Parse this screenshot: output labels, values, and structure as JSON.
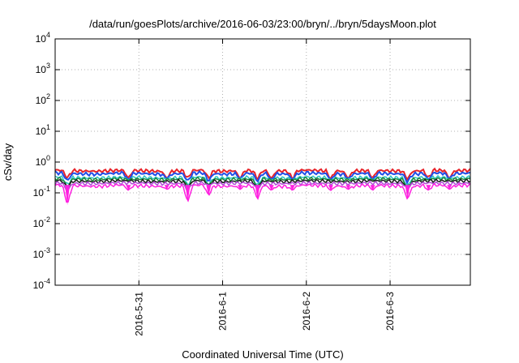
{
  "chart_data": {
    "type": "area",
    "title": "/data/run/goesPlots/archive/2016-06-03/23:00/bryn/../bryn/5daysMoon.plot",
    "xlabel": "Coordinated Universal Time (UTC)",
    "ylabel": "cSv/day",
    "yscale": "log",
    "ylim": [
      0.0001,
      10000
    ],
    "y_ticks": [
      {
        "value": 0.0001,
        "mantissa": "10",
        "exp": "-4"
      },
      {
        "value": 0.001,
        "mantissa": "10",
        "exp": "-3"
      },
      {
        "value": 0.01,
        "mantissa": "10",
        "exp": "-2"
      },
      {
        "value": 0.1,
        "mantissa": "10",
        "exp": "-1"
      },
      {
        "value": 1,
        "mantissa": "10",
        "exp": "0"
      },
      {
        "value": 10,
        "mantissa": "10",
        "exp": "1"
      },
      {
        "value": 100,
        "mantissa": "10",
        "exp": "2"
      },
      {
        "value": 1000,
        "mantissa": "10",
        "exp": "3"
      },
      {
        "value": 10000,
        "mantissa": "10",
        "exp": "4"
      }
    ],
    "xlim": [
      "2016-05-30T00:00",
      "2016-06-03T23:00"
    ],
    "x_ticks": [
      "2016-5-31",
      "2016-6-1",
      "2016-6-2",
      "2016-6-3"
    ],
    "x_tick_dates": [
      "2016-05-31",
      "2016-06-01",
      "2016-06-02",
      "2016-06-03"
    ],
    "grid": true,
    "legend": "none",
    "x": [
      "2016-05-30T00:00",
      "2016-05-30T06:00",
      "2016-05-30T12:00",
      "2016-05-30T18:00",
      "2016-05-31T00:00",
      "2016-05-31T06:00",
      "2016-05-31T12:00",
      "2016-05-31T18:00",
      "2016-06-01T00:00",
      "2016-06-01T06:00",
      "2016-06-01T12:00",
      "2016-06-01T18:00",
      "2016-06-02T00:00",
      "2016-06-02T06:00",
      "2016-06-02T12:00",
      "2016-06-02T18:00",
      "2016-06-03T00:00",
      "2016-06-03T06:00",
      "2016-06-03T12:00",
      "2016-06-03T18:00",
      "2016-06-03T23:00"
    ],
    "series": [
      {
        "color": "#e8232a",
        "values": [
          0.55,
          0.52,
          0.5,
          0.54,
          0.53,
          0.5,
          0.52,
          0.55,
          0.5,
          0.53,
          0.52,
          0.51,
          0.55,
          0.52,
          0.5,
          0.54,
          0.52,
          0.5,
          0.55,
          0.52,
          0.54
        ]
      },
      {
        "color": "#1f4fe8",
        "values": [
          0.45,
          0.42,
          0.4,
          0.44,
          0.43,
          0.4,
          0.42,
          0.45,
          0.4,
          0.43,
          0.42,
          0.41,
          0.45,
          0.42,
          0.4,
          0.44,
          0.42,
          0.4,
          0.45,
          0.42,
          0.44
        ]
      },
      {
        "color": "#2ec4c4",
        "values": [
          0.33,
          0.31,
          0.3,
          0.32,
          0.32,
          0.3,
          0.31,
          0.33,
          0.3,
          0.32,
          0.31,
          0.3,
          0.33,
          0.31,
          0.3,
          0.32,
          0.31,
          0.3,
          0.33,
          0.31,
          0.32
        ]
      },
      {
        "color": "#1b8a3a",
        "values": [
          0.29,
          0.28,
          0.27,
          0.29,
          0.28,
          0.27,
          0.28,
          0.29,
          0.27,
          0.28,
          0.28,
          0.27,
          0.29,
          0.28,
          0.27,
          0.29,
          0.28,
          0.27,
          0.29,
          0.28,
          0.29
        ]
      },
      {
        "color": "#1a1a1a",
        "values": [
          0.25,
          0.24,
          0.23,
          0.25,
          0.24,
          0.23,
          0.24,
          0.25,
          0.23,
          0.24,
          0.24,
          0.23,
          0.25,
          0.24,
          0.23,
          0.25,
          0.24,
          0.23,
          0.25,
          0.24,
          0.25
        ]
      },
      {
        "color": "#b04fd8",
        "values": [
          0.21,
          0.2,
          0.2,
          0.21,
          0.21,
          0.2,
          0.2,
          0.21,
          0.2,
          0.21,
          0.2,
          0.2,
          0.21,
          0.2,
          0.2,
          0.21,
          0.2,
          0.2,
          0.21,
          0.2,
          0.21
        ]
      },
      {
        "color": "#ff1fe0",
        "values": [
          0.18,
          0.17,
          0.16,
          0.18,
          0.17,
          0.16,
          0.17,
          0.18,
          0.16,
          0.17,
          0.17,
          0.16,
          0.18,
          0.17,
          0.16,
          0.18,
          0.17,
          0.16,
          0.18,
          0.17,
          0.18
        ]
      }
    ],
    "dips": [
      {
        "x": "2016-05-30T03:30",
        "min": 0.04
      },
      {
        "x": "2016-05-30T21:00",
        "min": 0.12
      },
      {
        "x": "2016-05-31T08:00",
        "min": 0.13
      },
      {
        "x": "2016-05-31T14:00",
        "min": 0.05
      },
      {
        "x": "2016-05-31T20:00",
        "min": 0.08
      },
      {
        "x": "2016-06-01T05:00",
        "min": 0.13
      },
      {
        "x": "2016-06-01T10:00",
        "min": 0.06
      },
      {
        "x": "2016-06-01T14:00",
        "min": 0.12
      },
      {
        "x": "2016-06-01T20:00",
        "min": 0.12
      },
      {
        "x": "2016-06-02T07:00",
        "min": 0.12
      },
      {
        "x": "2016-06-02T12:00",
        "min": 0.13
      },
      {
        "x": "2016-06-02T19:00",
        "min": 0.12
      },
      {
        "x": "2016-06-03T05:00",
        "min": 0.06
      },
      {
        "x": "2016-06-03T11:00",
        "min": 0.12
      },
      {
        "x": "2016-06-03T17:00",
        "min": 0.13
      }
    ]
  }
}
